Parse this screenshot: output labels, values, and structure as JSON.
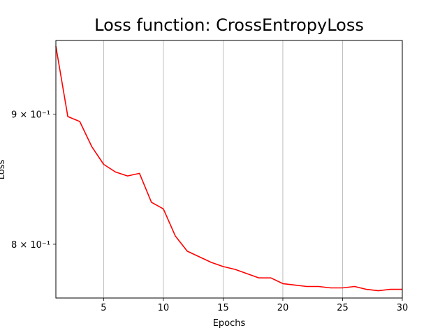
{
  "chart_data": {
    "type": "line",
    "title": "Loss function: CrossEntropyLoss",
    "xlabel": "Epochs",
    "ylabel": "Loss",
    "xlim": [
      1,
      30
    ],
    "ylim": [
      0.762,
      0.962
    ],
    "yscale": "log",
    "grid": "x-only",
    "x_ticks": [
      5,
      10,
      15,
      20,
      25,
      30
    ],
    "y_ticks": [
      {
        "value": 0.9,
        "label": "9 × 10⁻¹"
      },
      {
        "value": 0.8,
        "label": "8 × 10⁻¹"
      }
    ],
    "series": [
      {
        "color": "#ff0000",
        "x": [
          1,
          2,
          3,
          4,
          5,
          6,
          7,
          8,
          9,
          10,
          11,
          12,
          13,
          14,
          15,
          16,
          17,
          18,
          19,
          20,
          21,
          22,
          23,
          24,
          25,
          26,
          27,
          28,
          29,
          30
        ],
        "y": [
          0.957,
          0.898,
          0.894,
          0.874,
          0.86,
          0.854,
          0.851,
          0.853,
          0.831,
          0.826,
          0.806,
          0.795,
          0.791,
          0.787,
          0.784,
          0.782,
          0.779,
          0.776,
          0.776,
          0.772,
          0.771,
          0.77,
          0.77,
          0.769,
          0.769,
          0.77,
          0.768,
          0.767,
          0.768,
          0.768
        ]
      }
    ]
  }
}
